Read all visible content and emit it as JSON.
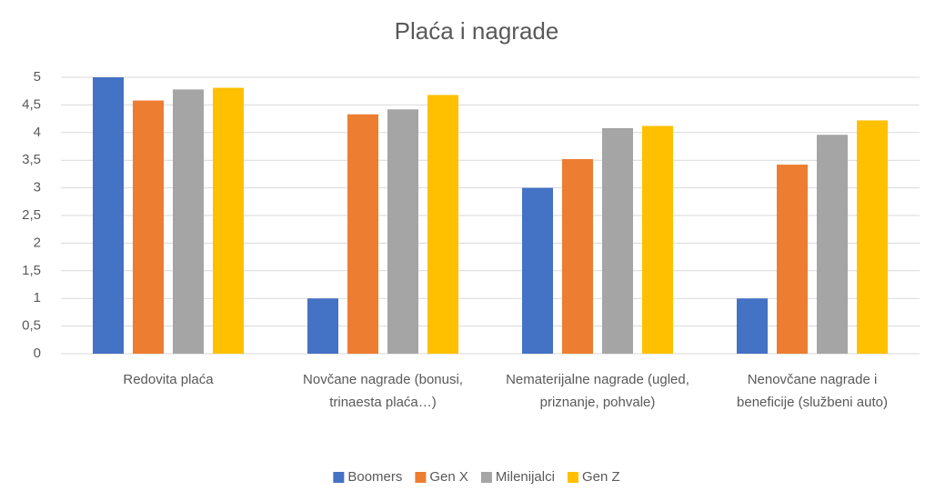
{
  "chart_data": {
    "type": "bar",
    "title": "Plaća i nagrade",
    "categories": [
      "Redovita plaća",
      "Novčane nagrade (bonusi, trinaesta plaća…)",
      "Nematerijalne nagrade (ugled, priznanje, pohvale)",
      "Nenovčane nagrade i beneficije (službeni auto)"
    ],
    "series": [
      {
        "name": "Boomers",
        "color": "#4472c4",
        "values": [
          5,
          1,
          3,
          1
        ]
      },
      {
        "name": "Gen X",
        "color": "#ed7d31",
        "values": [
          4.58,
          4.33,
          3.52,
          3.42
        ]
      },
      {
        "name": "Milenijalci",
        "color": "#a5a5a5",
        "values": [
          4.78,
          4.42,
          4.08,
          3.96
        ]
      },
      {
        "name": "Gen Z",
        "color": "#ffc000",
        "values": [
          4.81,
          4.68,
          4.12,
          4.22
        ]
      }
    ],
    "ylim": [
      0,
      5
    ],
    "yticks": [
      0,
      {
        "value": 0.5,
        "label": "0,5"
      },
      1,
      {
        "value": 1.5,
        "label": "1,5"
      },
      2,
      {
        "value": 2.5,
        "label": "2,5"
      },
      3,
      {
        "value": 3.5,
        "label": "3,5"
      },
      4,
      {
        "value": 4.5,
        "label": "4,5"
      },
      5
    ],
    "grid": true,
    "legend": "bottom"
  }
}
